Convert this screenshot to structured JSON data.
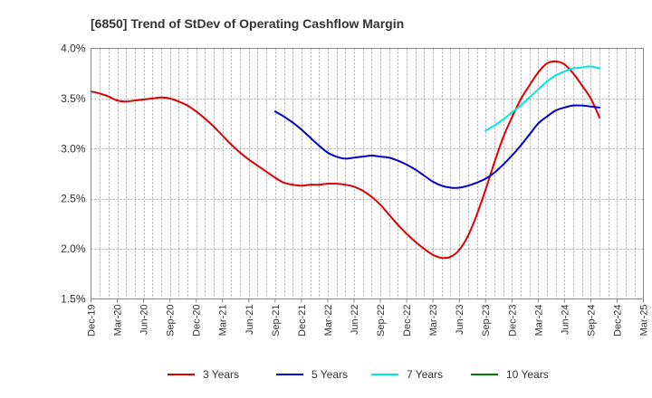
{
  "chart_data": {
    "type": "line",
    "title": "[6850]  Trend of StDev of Operating Cashflow Margin",
    "xlabel": "",
    "ylabel": "",
    "y_unit": "%",
    "ylim": [
      1.5,
      4.0
    ],
    "y_ticks": [
      {
        "value": 1.5,
        "label": "1.5%"
      },
      {
        "value": 2.0,
        "label": "2.0%"
      },
      {
        "value": 2.5,
        "label": "2.5%"
      },
      {
        "value": 3.0,
        "label": "3.0%"
      },
      {
        "value": 3.5,
        "label": "3.5%"
      },
      {
        "value": 4.0,
        "label": "4.0%"
      }
    ],
    "x_start": "2019-12",
    "x_end": "2025-03",
    "x_ticks": [
      "Dec-19",
      "Mar-20",
      "Jun-20",
      "Sep-20",
      "Dec-20",
      "Mar-21",
      "Jun-21",
      "Sep-21",
      "Dec-21",
      "Mar-22",
      "Jun-22",
      "Sep-22",
      "Dec-22",
      "Mar-23",
      "Jun-23",
      "Sep-23",
      "Dec-23",
      "Mar-24",
      "Jun-24",
      "Sep-24",
      "Dec-24",
      "Mar-25"
    ],
    "grid": true,
    "legend_position": "bottom",
    "series": [
      {
        "name": "3 Years",
        "color": "#dd0000",
        "points": [
          [
            "2019-12",
            3.57
          ],
          [
            "2020-01",
            3.55
          ],
          [
            "2020-02",
            3.52
          ],
          [
            "2020-03",
            3.48
          ],
          [
            "2020-04",
            3.47
          ],
          [
            "2020-05",
            3.48
          ],
          [
            "2020-06",
            3.49
          ],
          [
            "2020-07",
            3.5
          ],
          [
            "2020-08",
            3.51
          ],
          [
            "2020-09",
            3.5
          ],
          [
            "2020-10",
            3.47
          ],
          [
            "2020-11",
            3.43
          ],
          [
            "2020-12",
            3.37
          ],
          [
            "2021-01",
            3.3
          ],
          [
            "2021-02",
            3.22
          ],
          [
            "2021-03",
            3.13
          ],
          [
            "2021-04",
            3.04
          ],
          [
            "2021-05",
            2.96
          ],
          [
            "2021-06",
            2.89
          ],
          [
            "2021-07",
            2.83
          ],
          [
            "2021-08",
            2.77
          ],
          [
            "2021-09",
            2.71
          ],
          [
            "2021-10",
            2.66
          ],
          [
            "2021-11",
            2.64
          ],
          [
            "2021-12",
            2.63
          ],
          [
            "2022-01",
            2.64
          ],
          [
            "2022-02",
            2.64
          ],
          [
            "2022-03",
            2.65
          ],
          [
            "2022-04",
            2.65
          ],
          [
            "2022-05",
            2.64
          ],
          [
            "2022-06",
            2.62
          ],
          [
            "2022-07",
            2.58
          ],
          [
            "2022-08",
            2.52
          ],
          [
            "2022-09",
            2.44
          ],
          [
            "2022-10",
            2.34
          ],
          [
            "2022-11",
            2.24
          ],
          [
            "2022-12",
            2.15
          ],
          [
            "2023-01",
            2.07
          ],
          [
            "2023-02",
            2.0
          ],
          [
            "2023-03",
            1.94
          ],
          [
            "2023-04",
            1.91
          ],
          [
            "2023-05",
            1.92
          ],
          [
            "2023-06",
            1.99
          ],
          [
            "2023-07",
            2.13
          ],
          [
            "2023-08",
            2.34
          ],
          [
            "2023-09",
            2.59
          ],
          [
            "2023-10",
            2.86
          ],
          [
            "2023-11",
            3.11
          ],
          [
            "2023-12",
            3.31
          ],
          [
            "2024-01",
            3.49
          ],
          [
            "2024-02",
            3.63
          ],
          [
            "2024-03",
            3.76
          ],
          [
            "2024-04",
            3.85
          ],
          [
            "2024-05",
            3.87
          ],
          [
            "2024-06",
            3.84
          ],
          [
            "2024-07",
            3.75
          ],
          [
            "2024-08",
            3.63
          ],
          [
            "2024-09",
            3.5
          ],
          [
            "2024-10",
            3.31
          ]
        ]
      },
      {
        "name": "5 Years",
        "color": "#0000cc",
        "points": [
          [
            "2021-09",
            3.37
          ],
          [
            "2021-10",
            3.32
          ],
          [
            "2021-11",
            3.26
          ],
          [
            "2021-12",
            3.19
          ],
          [
            "2022-01",
            3.11
          ],
          [
            "2022-02",
            3.03
          ],
          [
            "2022-03",
            2.96
          ],
          [
            "2022-04",
            2.92
          ],
          [
            "2022-05",
            2.9
          ],
          [
            "2022-06",
            2.91
          ],
          [
            "2022-07",
            2.92
          ],
          [
            "2022-08",
            2.93
          ],
          [
            "2022-09",
            2.92
          ],
          [
            "2022-10",
            2.91
          ],
          [
            "2022-11",
            2.88
          ],
          [
            "2022-12",
            2.84
          ],
          [
            "2023-01",
            2.79
          ],
          [
            "2023-02",
            2.73
          ],
          [
            "2023-03",
            2.67
          ],
          [
            "2023-04",
            2.63
          ],
          [
            "2023-05",
            2.61
          ],
          [
            "2023-06",
            2.61
          ],
          [
            "2023-07",
            2.63
          ],
          [
            "2023-08",
            2.66
          ],
          [
            "2023-09",
            2.7
          ],
          [
            "2023-10",
            2.76
          ],
          [
            "2023-11",
            2.84
          ],
          [
            "2023-12",
            2.93
          ],
          [
            "2024-01",
            3.03
          ],
          [
            "2024-02",
            3.14
          ],
          [
            "2024-03",
            3.25
          ],
          [
            "2024-04",
            3.32
          ],
          [
            "2024-05",
            3.38
          ],
          [
            "2024-06",
            3.41
          ],
          [
            "2024-07",
            3.43
          ],
          [
            "2024-08",
            3.43
          ],
          [
            "2024-09",
            3.42
          ],
          [
            "2024-10",
            3.41
          ]
        ]
      },
      {
        "name": "7 Years",
        "color": "#00e5e5",
        "points": [
          [
            "2023-09",
            3.18
          ],
          [
            "2023-10",
            3.23
          ],
          [
            "2023-11",
            3.29
          ],
          [
            "2023-12",
            3.36
          ],
          [
            "2024-01",
            3.43
          ],
          [
            "2024-02",
            3.51
          ],
          [
            "2024-03",
            3.59
          ],
          [
            "2024-04",
            3.67
          ],
          [
            "2024-05",
            3.73
          ],
          [
            "2024-06",
            3.77
          ],
          [
            "2024-07",
            3.8
          ],
          [
            "2024-08",
            3.81
          ],
          [
            "2024-09",
            3.82
          ],
          [
            "2024-10",
            3.8
          ]
        ]
      },
      {
        "name": "10 Years",
        "color": "#008000",
        "points": []
      }
    ]
  }
}
